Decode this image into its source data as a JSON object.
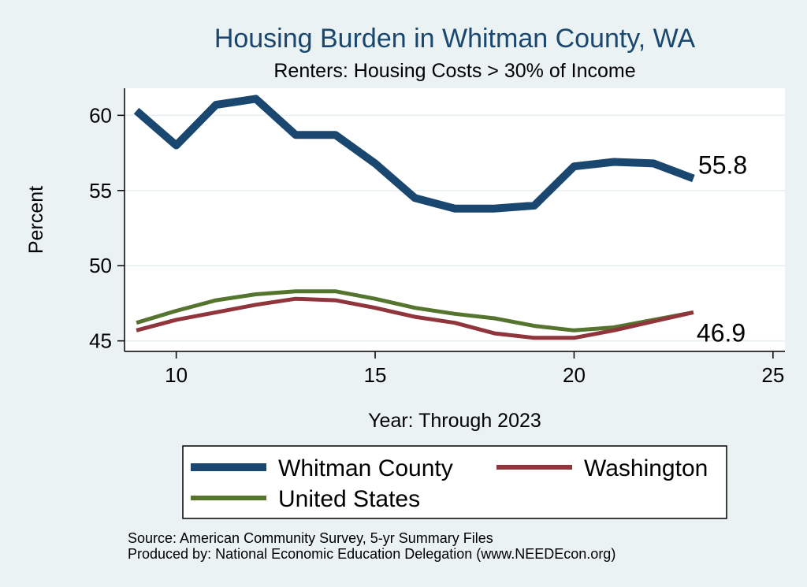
{
  "chart_data": {
    "type": "line",
    "title": "Housing Burden in Whitman County, WA",
    "subtitle": "Renters: Housing Costs > 30% of Income",
    "xlabel": "Year: Through 2023",
    "ylabel": "Percent",
    "xlim": [
      8.7,
      25.3
    ],
    "ylim": [
      44.3,
      61.8
    ],
    "x_ticks": [
      10,
      15,
      20,
      25
    ],
    "y_ticks": [
      45,
      50,
      55,
      60
    ],
    "grid": true,
    "series": [
      {
        "name": "Whitman County",
        "color": "#1a476f",
        "x": [
          9,
          10,
          11,
          12,
          13,
          14,
          15,
          16,
          17,
          18,
          19,
          20,
          21,
          22,
          23
        ],
        "values": [
          60.3,
          58.0,
          60.7,
          61.1,
          58.7,
          58.7,
          56.8,
          54.5,
          53.8,
          53.8,
          54.0,
          56.6,
          56.9,
          56.8,
          55.8
        ],
        "end_label": "55.8"
      },
      {
        "name": "Washington",
        "color": "#90353b",
        "x": [
          9,
          10,
          11,
          12,
          13,
          14,
          15,
          16,
          17,
          18,
          19,
          20,
          21,
          22,
          23
        ],
        "values": [
          45.7,
          46.4,
          46.9,
          47.4,
          47.8,
          47.7,
          47.2,
          46.6,
          46.2,
          45.5,
          45.2,
          45.2,
          45.7,
          46.3,
          46.9
        ],
        "end_label": "46.9"
      },
      {
        "name": "United States",
        "color": "#55752f",
        "x": [
          9,
          10,
          11,
          12,
          13,
          14,
          15,
          16,
          17,
          18,
          19,
          20,
          21,
          22,
          23
        ],
        "values": [
          46.2,
          47.0,
          47.7,
          48.1,
          48.3,
          48.3,
          47.8,
          47.2,
          46.8,
          46.5,
          46.0,
          45.7,
          45.9,
          46.4,
          46.9
        ],
        "end_label": ""
      }
    ],
    "legend_position": "bottom",
    "legend": [
      "Whitman County",
      "Washington",
      "United States"
    ]
  },
  "footer": {
    "source": "Source: American Community Survey, 5-yr Summary Files",
    "produced_by": "Produced by: National Economic Education Delegation (www.NEEDEcon.org)"
  }
}
